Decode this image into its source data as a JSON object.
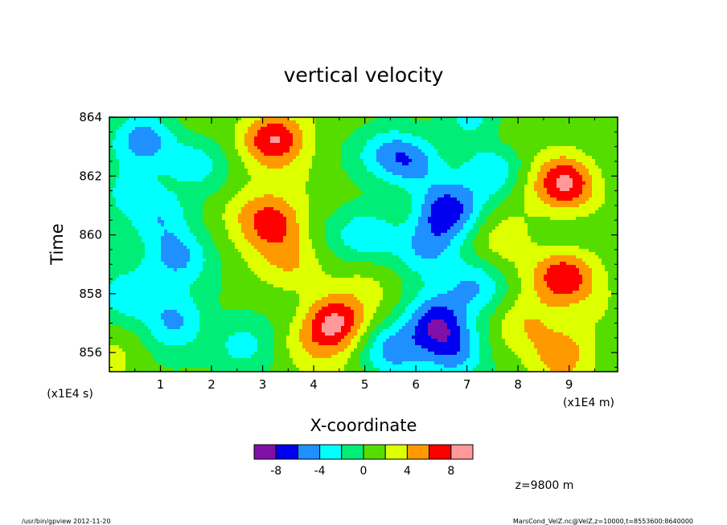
{
  "chart_data": {
    "type": "heatmap",
    "title": "vertical velocity",
    "xlabel": "X-coordinate",
    "ylabel": "Time",
    "x_unit": "(x1E4 m)",
    "y_unit": "(x1E4 s)",
    "x_ticks": [
      "1",
      "2",
      "3",
      "4",
      "5",
      "6",
      "7",
      "8",
      "9"
    ],
    "y_ticks": [
      "856",
      "858",
      "860",
      "862",
      "864"
    ],
    "x_range": [
      0.0,
      9.95
    ],
    "y_range": [
      855.35,
      864.0
    ],
    "colorbar": {
      "labels": [
        "-8",
        "-4",
        "0",
        "4",
        "8"
      ],
      "label_values": [
        -8,
        -4,
        0,
        4,
        8
      ],
      "boundaries": [
        -10,
        -8,
        -6,
        -4,
        -2,
        0,
        2,
        4,
        6,
        8,
        10
      ],
      "colors": [
        "#8010a8",
        "#0000ee",
        "#1e90ff",
        "#00ffff",
        "#00ee77",
        "#55dd00",
        "#ddff00",
        "#ff9900",
        "#ff0000",
        "#ff9999"
      ]
    },
    "features": [
      {
        "x": 3.2,
        "y": 863.3,
        "value": 8.5
      },
      {
        "x": 3.2,
        "y": 860.4,
        "value": 6.5
      },
      {
        "x": 4.4,
        "y": 857.0,
        "value": 8.5
      },
      {
        "x": 8.95,
        "y": 861.8,
        "value": 8.5
      },
      {
        "x": 8.9,
        "y": 858.6,
        "value": 8.0
      },
      {
        "x": 8.85,
        "y": 856.0,
        "value": 5.0
      },
      {
        "x": 8.15,
        "y": 857.0,
        "value": 4.5
      },
      {
        "x": 7.6,
        "y": 863.5,
        "value": 3.0
      },
      {
        "x": 2.6,
        "y": 861.0,
        "value": 3.0
      },
      {
        "x": 3.6,
        "y": 859.0,
        "value": 3.5
      },
      {
        "x": 0.2,
        "y": 856.1,
        "value": 2.0
      },
      {
        "x": 5.1,
        "y": 858.7,
        "value": 2.0
      },
      {
        "x": 7.7,
        "y": 860.0,
        "value": 3.0
      },
      {
        "x": 3.9,
        "y": 856.3,
        "value": 3.0
      },
      {
        "x": 0.7,
        "y": 863.3,
        "value": -4.5
      },
      {
        "x": 1.0,
        "y": 860.7,
        "value": -4.0
      },
      {
        "x": 1.3,
        "y": 859.3,
        "value": -4.0
      },
      {
        "x": 0.4,
        "y": 858.0,
        "value": -4.5
      },
      {
        "x": 1.3,
        "y": 857.1,
        "value": -4.0
      },
      {
        "x": 2.6,
        "y": 856.3,
        "value": -3.5
      },
      {
        "x": 1.7,
        "y": 862.5,
        "value": -3.0
      },
      {
        "x": 6.0,
        "y": 862.5,
        "value": -4.0
      },
      {
        "x": 6.6,
        "y": 860.8,
        "value": -6.5
      },
      {
        "x": 5.1,
        "y": 860.0,
        "value": -4.0
      },
      {
        "x": 6.2,
        "y": 859.6,
        "value": -4.0
      },
      {
        "x": 6.4,
        "y": 857.0,
        "value": -7.0
      },
      {
        "x": 5.5,
        "y": 856.1,
        "value": -4.0
      },
      {
        "x": 6.8,
        "y": 856.0,
        "value": -5.0
      },
      {
        "x": 7.2,
        "y": 858.3,
        "value": -4.0
      },
      {
        "x": 7.5,
        "y": 862.2,
        "value": -4.0
      },
      {
        "x": 7.1,
        "y": 864.0,
        "value": -3.0
      },
      {
        "x": 0.3,
        "y": 861.5,
        "value": -2.0
      },
      {
        "x": 5.5,
        "y": 862.8,
        "value": -3.0
      }
    ]
  },
  "annotation": "z=9800  m",
  "footer": {
    "left": "/usr/bin/gpview  2012-11-20",
    "right": "MarsCond_VelZ.nc@VelZ,z=10000,t=8553600:8640000"
  }
}
